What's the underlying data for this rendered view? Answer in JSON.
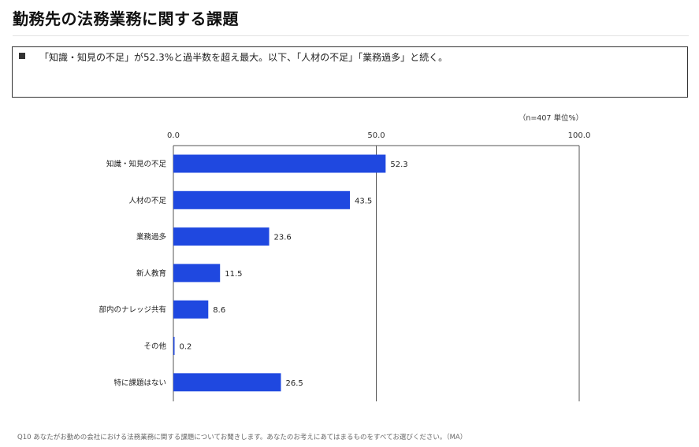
{
  "page": {
    "title": "勤務先の法務業務に関する課題",
    "summary": "「知識・知見の不足」が52.3%と過半数を超え最大。以下、「人材の不足」「業務過多」と続く。",
    "note": "（n=407  単位%）",
    "footnote": "Q10  あなたがお勤めの会社における法務業務に関する課題についてお聞きします。あなたのお考えにあてはまるものをすべてお選びください。（MA）"
  },
  "chart_data": {
    "type": "bar",
    "orientation": "horizontal",
    "categories": [
      "知識・知見の不足",
      "人材の不足",
      "業務過多",
      "新人教育",
      "部内のナレッジ共有",
      "その他",
      "特に課題はない"
    ],
    "values": [
      52.3,
      43.5,
      23.6,
      11.5,
      8.6,
      0.2,
      26.5
    ],
    "value_labels": [
      "52.3",
      "43.5",
      "23.6",
      "11.5",
      "8.6",
      "0.2",
      "26.5"
    ],
    "xlim": [
      0,
      100
    ],
    "ticks": [
      0,
      50,
      100
    ],
    "tick_labels": [
      "0.0",
      "50.0",
      "100.0"
    ],
    "grid": true,
    "bar_color": "#1f48e0",
    "axis_color": "#555555"
  }
}
